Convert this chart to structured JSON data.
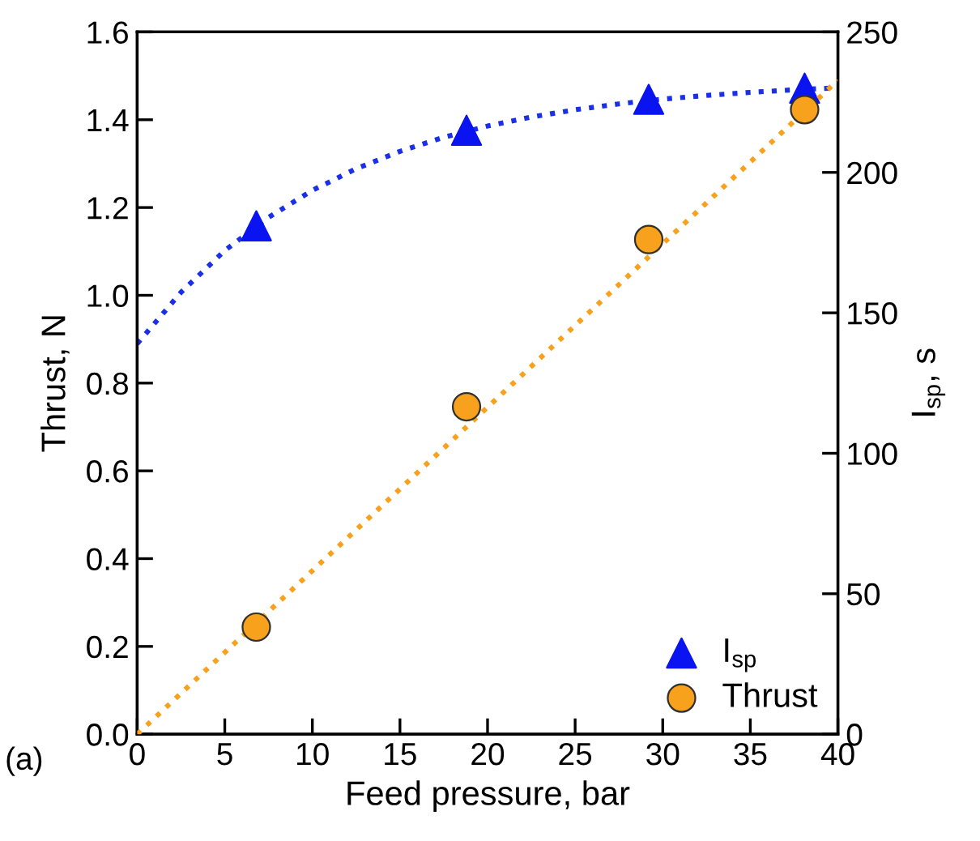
{
  "chart_data": {
    "type": "scatter",
    "xlabel": "Feed pressure, bar",
    "ylabel": "Thrust, N",
    "y2label": "I$_{sp}$, s",
    "xlim": [
      0,
      40
    ],
    "xticks": [
      0,
      5,
      10,
      15,
      20,
      25,
      30,
      35,
      40
    ],
    "ylim": [
      0,
      1.6
    ],
    "yticks": [
      {
        "value": 0,
        "label": "0.0"
      },
      0.2,
      0.4,
      0.6,
      0.8,
      {
        "value": 1,
        "label": "1.0"
      },
      1.2,
      1.4,
      1.6
    ],
    "y2lim": [
      0,
      250
    ],
    "y2ticks": [
      0,
      50,
      100,
      150,
      200,
      250
    ],
    "grid": false,
    "legend": "bottom right",
    "annotations": [
      "(a)"
    ],
    "series": [
      {
        "name": "I$_{sp}$",
        "axis": "y2",
        "marker": "triangle",
        "color": "#0a14f0",
        "x": [
          6.8,
          18.8,
          29.2,
          38.1
        ],
        "values": [
          181,
          215,
          226,
          230
        ]
      },
      {
        "name": "Thrust",
        "axis": "y",
        "marker": "circle",
        "color": "#f7a11c",
        "x": [
          6.8,
          18.8,
          29.2,
          38.1
        ],
        "values": [
          0.244,
          0.746,
          1.127,
          1.423
        ]
      },
      {
        "type": "line",
        "axis": "y2",
        "line_style": "dotted",
        "color": "#1a30e8",
        "x": [
          0,
          2.5,
          5,
          7.5,
          10,
          12.5,
          15,
          17.5,
          20,
          22.5,
          25,
          27.5,
          30,
          32.5,
          35,
          37.5,
          40
        ],
        "values": [
          139,
          157.3,
          172.2,
          184.0,
          193.6,
          201.3,
          207.5,
          212.5,
          216.5,
          219.7,
          222.3,
          224.4,
          226.1,
          227.4,
          228.5,
          229.4,
          230.1
        ]
      },
      {
        "type": "line",
        "axis": "y",
        "line_style": "dotted",
        "color": "#f7a11c",
        "x": [
          0,
          40
        ],
        "values": [
          0,
          1.49
        ]
      }
    ]
  }
}
